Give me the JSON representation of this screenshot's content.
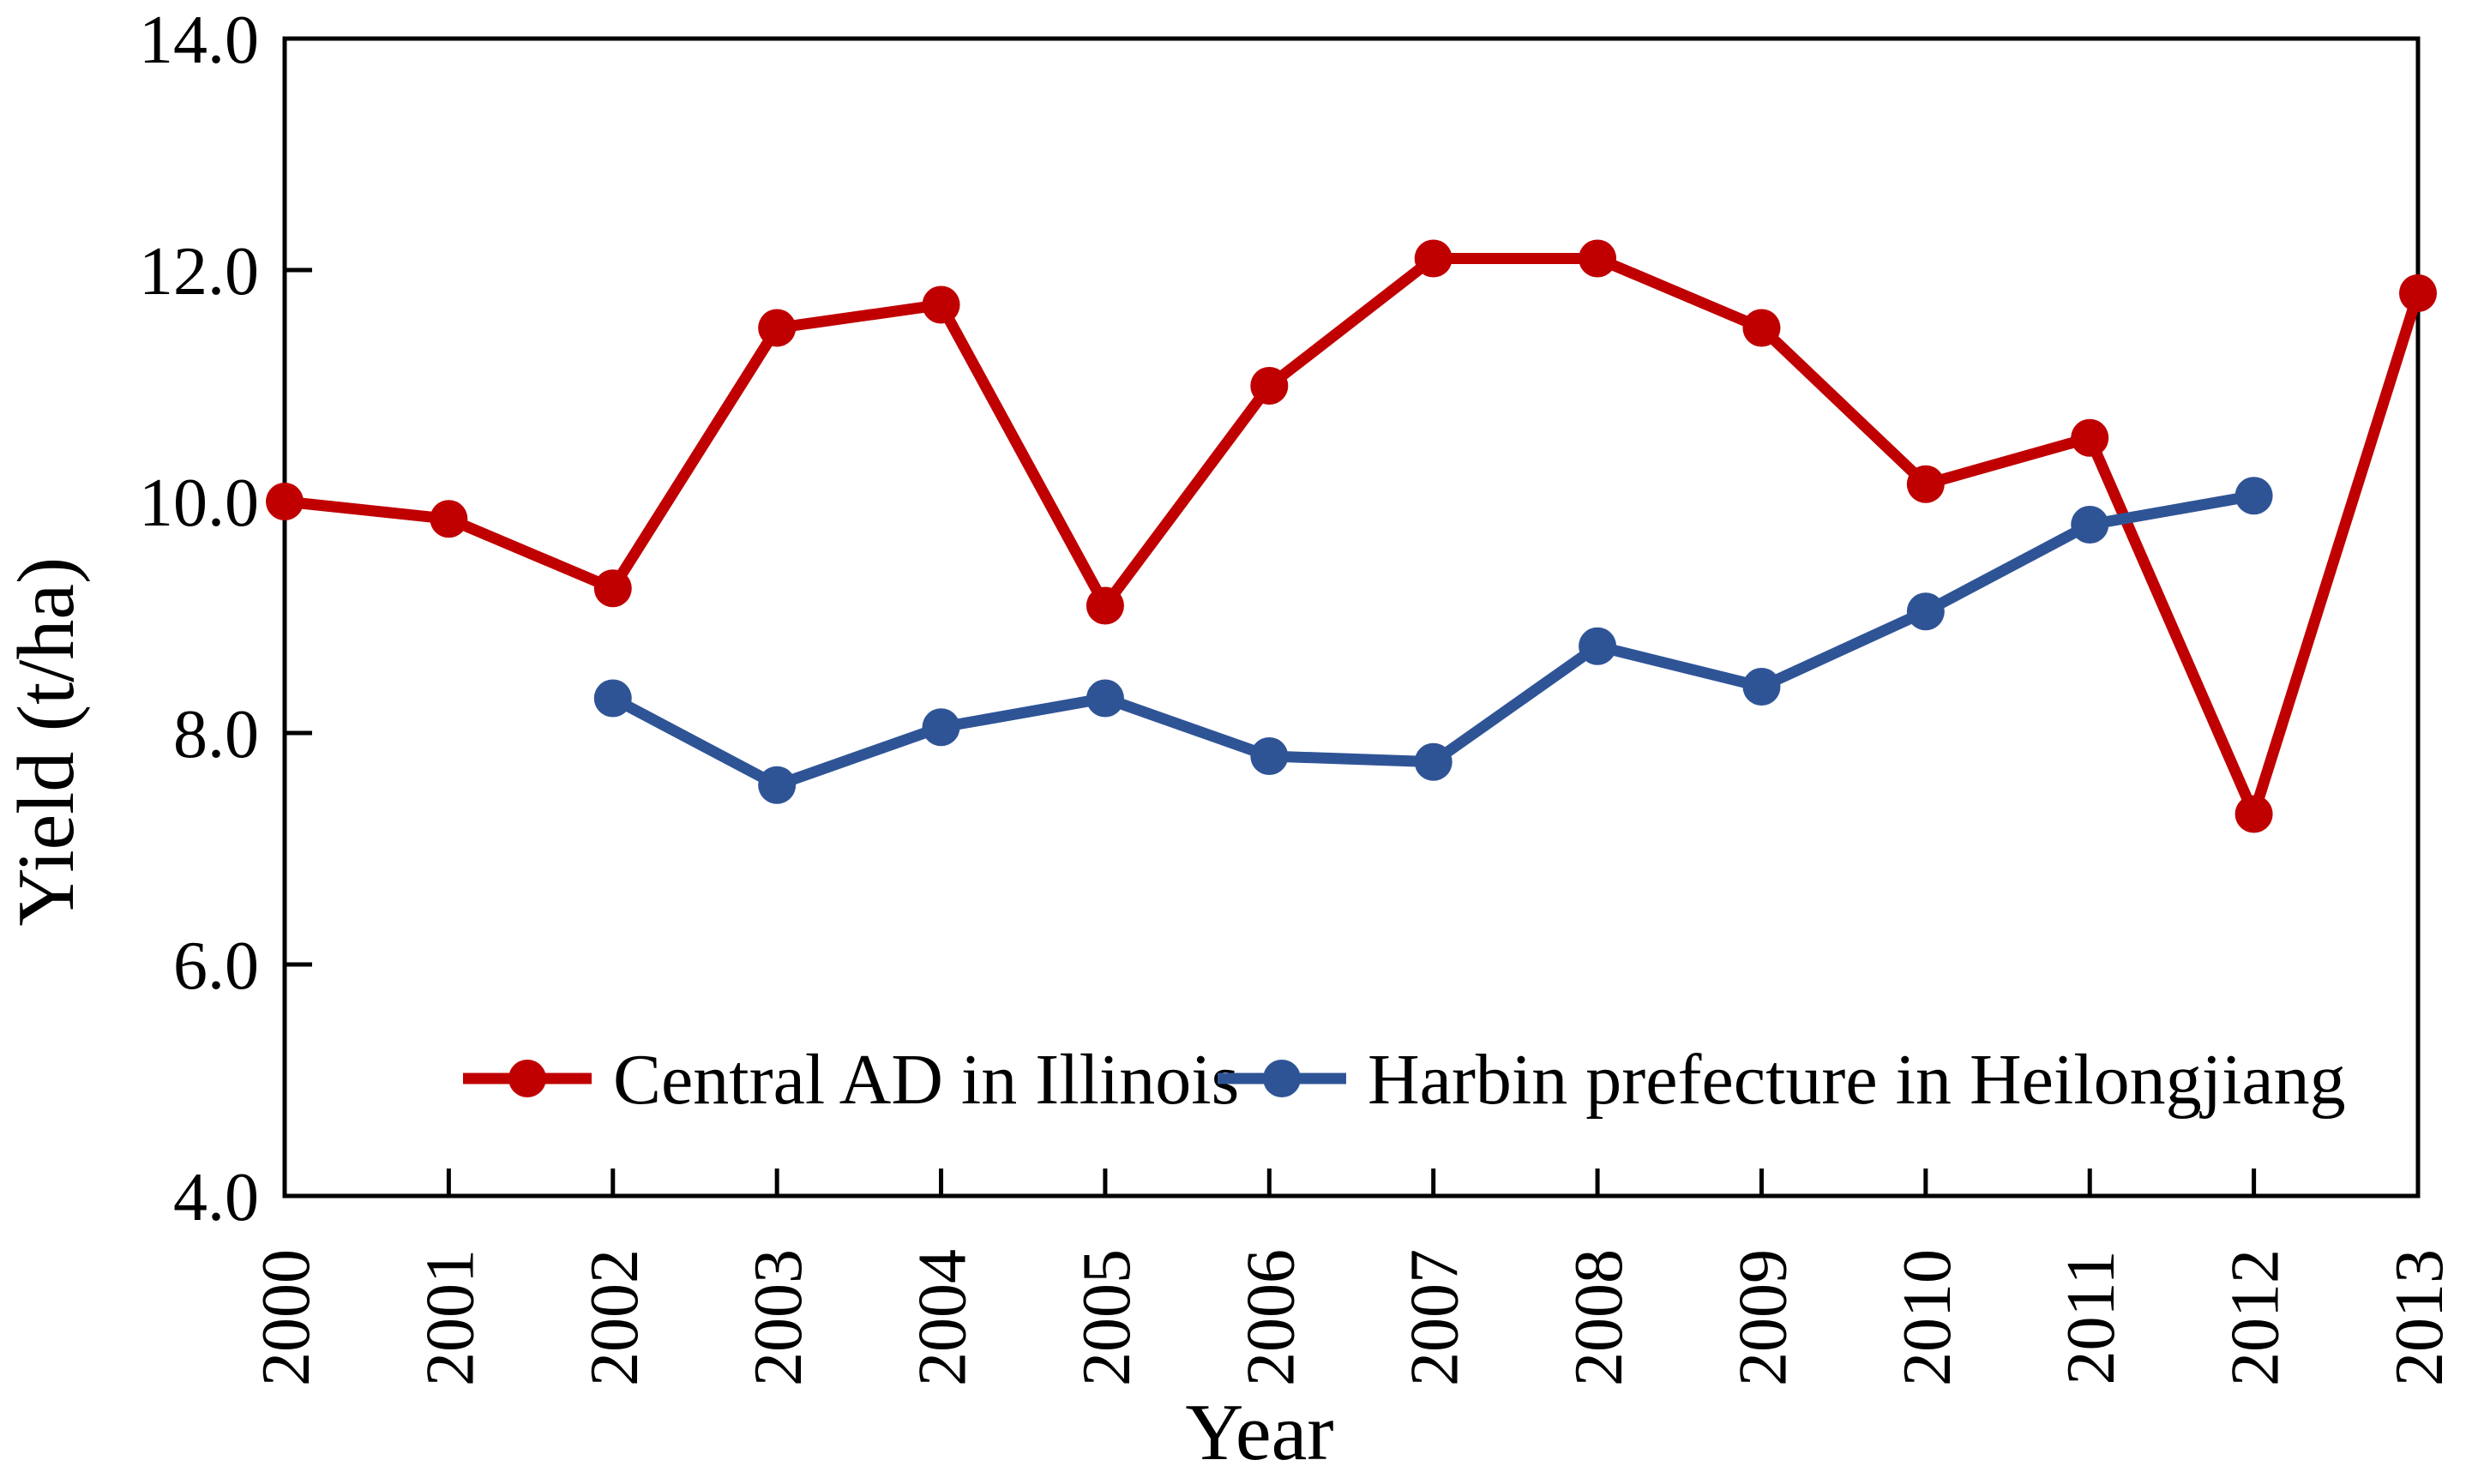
{
  "chart_data": {
    "type": "line",
    "title": "",
    "xlabel": "Year",
    "ylabel": "Yield (t/ha)",
    "categories": [
      "2000",
      "2001",
      "2002",
      "2003",
      "2004",
      "2005",
      "2006",
      "2007",
      "2008",
      "2009",
      "2010",
      "2011",
      "2012",
      "2013"
    ],
    "ylim": [
      4.0,
      14.0
    ],
    "y_ticks": [
      4.0,
      6.0,
      8.0,
      10.0,
      12.0,
      14.0
    ],
    "y_tick_labels": [
      "4.0",
      "6.0",
      "8.0",
      "10.0",
      "12.0",
      "14.0"
    ],
    "grid": false,
    "frame": true,
    "tick_style": "inside",
    "x_tick_label_rotation": -90,
    "legend_position": "inside-bottom-center",
    "axis_color": "#000000",
    "background_color": "#ffffff",
    "series": [
      {
        "name": "Central AD in Illinois",
        "color": "#C00000",
        "marker": "circle",
        "values": [
          10.0,
          9.85,
          9.25,
          11.5,
          11.7,
          9.1,
          11.0,
          12.1,
          12.1,
          11.5,
          10.15,
          10.55,
          7.3,
          11.8
        ]
      },
      {
        "name": "Harbin prefecture in Heilongjiang",
        "color": "#2F5496",
        "marker": "circle",
        "values": [
          null,
          null,
          8.3,
          7.55,
          8.05,
          8.3,
          7.8,
          7.75,
          8.75,
          8.4,
          9.05,
          9.8,
          10.05,
          null
        ]
      }
    ]
  }
}
